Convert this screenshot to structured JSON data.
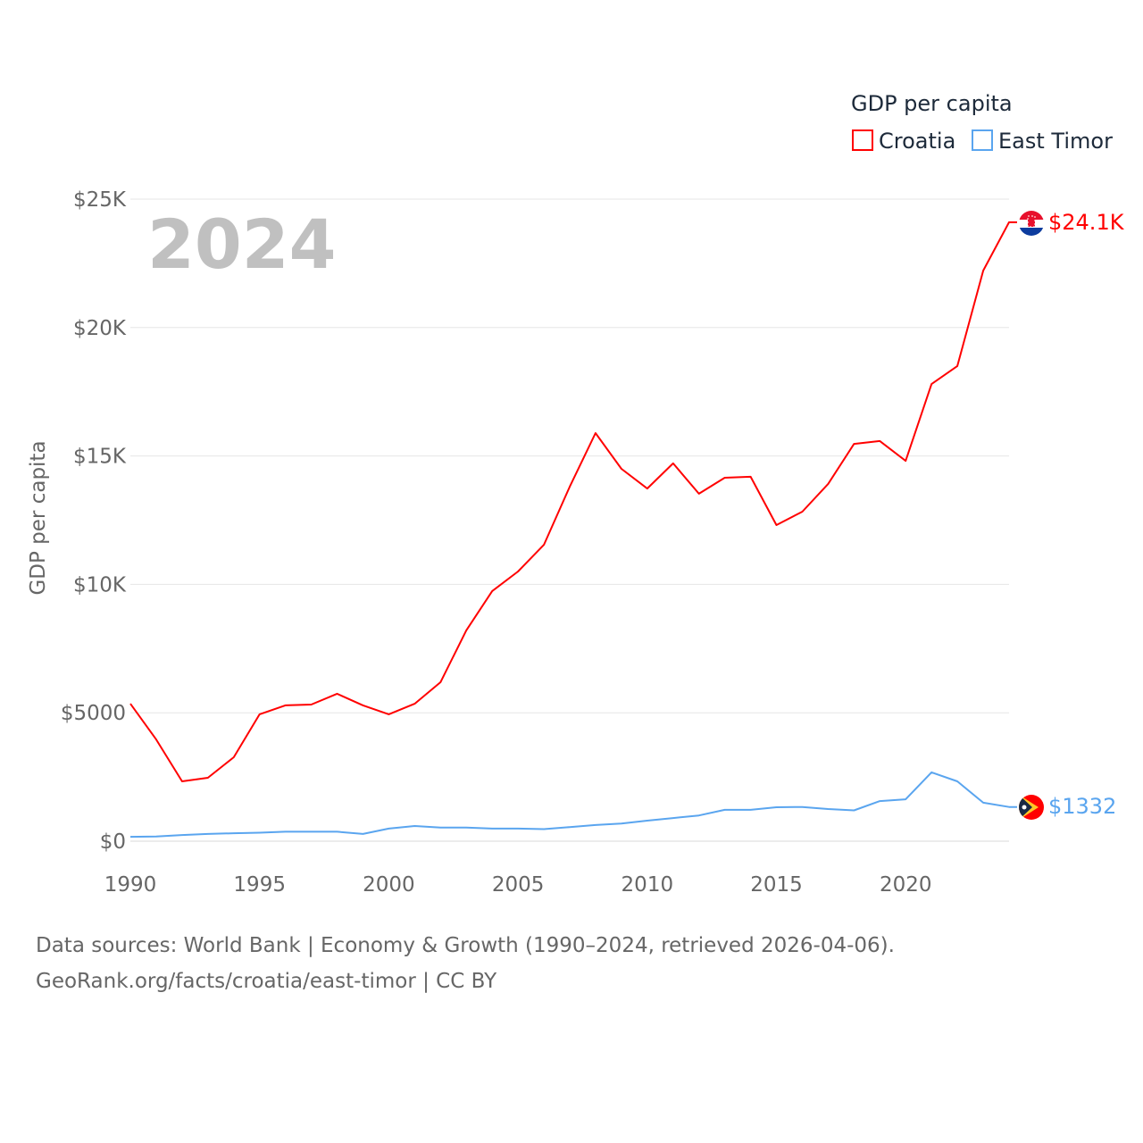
{
  "chart_data": {
    "type": "line",
    "title": "GDP per capita",
    "ylabel": "GDP per capita",
    "xlabel": "",
    "year_label": "2024",
    "xlim": [
      1990,
      2024
    ],
    "ylim": [
      0,
      25000
    ],
    "grid": true,
    "legend_position": "top-right",
    "x_ticks": [
      1990,
      1995,
      2000,
      2005,
      2010,
      2015,
      2020
    ],
    "x_tick_labels": [
      "1990",
      "1995",
      "2000",
      "2005",
      "2010",
      "2015",
      "2020"
    ],
    "y_ticks": [
      0,
      5000,
      10000,
      15000,
      20000,
      25000
    ],
    "y_tick_labels": [
      "$0",
      "$5000",
      "$10K",
      "$15K",
      "$20K",
      "$25K"
    ],
    "x": [
      1990,
      1991,
      1992,
      1993,
      1994,
      1995,
      1996,
      1997,
      1998,
      1999,
      2000,
      2001,
      2002,
      2003,
      2004,
      2005,
      2006,
      2007,
      2008,
      2009,
      2010,
      2011,
      2012,
      2013,
      2014,
      2015,
      2016,
      2017,
      2018,
      2019,
      2020,
      2021,
      2022,
      2023,
      2024
    ],
    "series": [
      {
        "name": "Croatia",
        "color": "#ff0000",
        "end_label": "$24.1K",
        "values": [
          5350,
          3960,
          2330,
          2470,
          3270,
          4940,
          5290,
          5320,
          5740,
          5290,
          4940,
          5350,
          6190,
          8210,
          9740,
          10500,
          11540,
          13800,
          15890,
          14500,
          13730,
          14710,
          13530,
          14150,
          14190,
          12310,
          12830,
          13910,
          15470,
          15580,
          14810,
          17800,
          18500,
          22220,
          24100
        ]
      },
      {
        "name": "East Timor",
        "color": "#5aa5ef",
        "end_label": "$1332",
        "values": [
          170,
          180,
          240,
          280,
          310,
          330,
          370,
          370,
          370,
          280,
          490,
          590,
          530,
          530,
          490,
          490,
          470,
          550,
          630,
          690,
          800,
          900,
          1000,
          1220,
          1220,
          1320,
          1330,
          1250,
          1200,
          1560,
          1630,
          2680,
          2330,
          1500,
          1332
        ]
      }
    ]
  },
  "footer": {
    "line1": "Data sources: World Bank | Economy & Growth (1990–2024, retrieved 2026-04-06).",
    "line2": "GeoRank.org/facts/croatia/east-timor | CC BY"
  }
}
